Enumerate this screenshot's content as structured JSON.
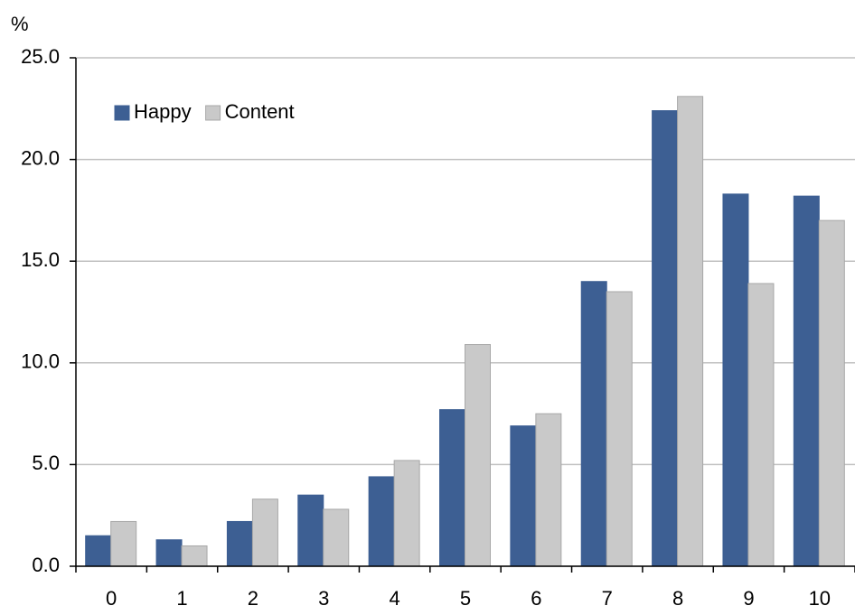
{
  "chart_data": {
    "type": "bar",
    "y_label": "%",
    "categories": [
      "0",
      "1",
      "2",
      "3",
      "4",
      "5",
      "6",
      "7",
      "8",
      "9",
      "10"
    ],
    "series": [
      {
        "name": "Happy",
        "color": "#3d5f93",
        "values": [
          1.5,
          1.3,
          2.2,
          3.5,
          4.4,
          7.7,
          6.9,
          14.0,
          22.4,
          18.3,
          18.2
        ]
      },
      {
        "name": "Content",
        "color": "#c9c9c9",
        "values": [
          2.2,
          1.0,
          3.3,
          2.8,
          5.2,
          10.9,
          7.5,
          13.5,
          23.1,
          13.9,
          17.0
        ]
      }
    ],
    "ylim": [
      0,
      25
    ],
    "yticks": [
      {
        "value": 0,
        "label": "0.0"
      },
      {
        "value": 5,
        "label": "5.0"
      },
      {
        "value": 10,
        "label": "10.0"
      },
      {
        "value": 15,
        "label": "15.0"
      },
      {
        "value": 20,
        "label": "20.0"
      },
      {
        "value": 25,
        "label": "25.0"
      }
    ],
    "grid": true,
    "legend": "top-left"
  }
}
